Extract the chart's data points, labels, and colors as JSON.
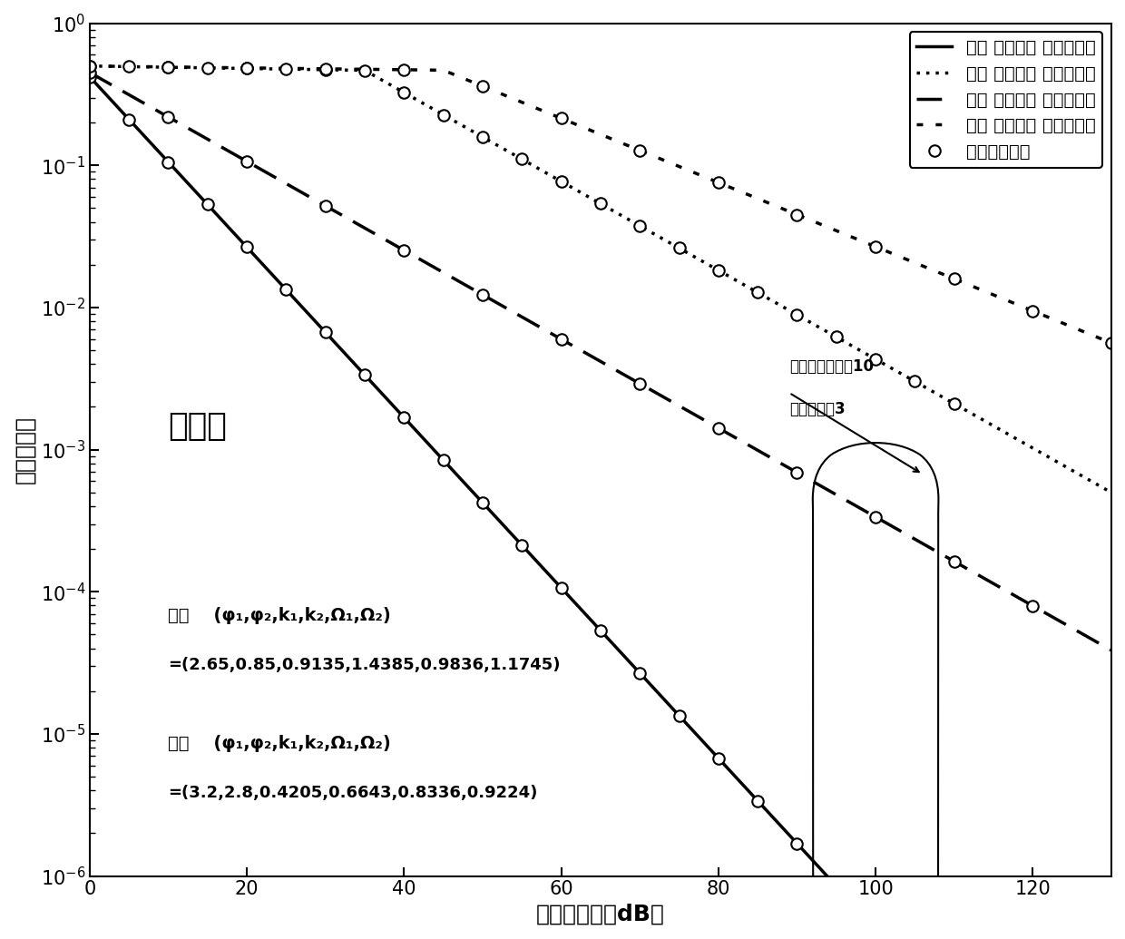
{
  "xlabel": "平均信噪比（dB）",
  "ylabel": "平均误码率",
  "xlim": [
    0,
    130
  ],
  "ylim_log": [
    -6,
    0
  ],
  "legend_entries": [
    "中湍 无点误差 无路径损耗",
    "强湍 无点误差 无路径损耗",
    "中湍 有点误差 无路径损耗",
    "强湍 有点误差 无路径损耗",
    "蒙特卡罗仿真"
  ],
  "text_spherical": "球面波",
  "annotation_line1": "归一化波束宽度10",
  "annotation_line2": "归一化抖动3",
  "background_color": "#ffffff",
  "curve1_start": 0.42,
  "curve1_decay": 0.138,
  "curve2_start": 0.5,
  "curve2_flat_decay": 0.002,
  "curve2_flat_end": 35,
  "curve2_steep_decay": 0.072,
  "curve3_start": 0.45,
  "curve3_decay": 0.072,
  "curve4_start": 0.5,
  "curve4_flat_decay": 0.0015,
  "curve4_flat_end": 45,
  "curve4_steep_decay": 0.052
}
